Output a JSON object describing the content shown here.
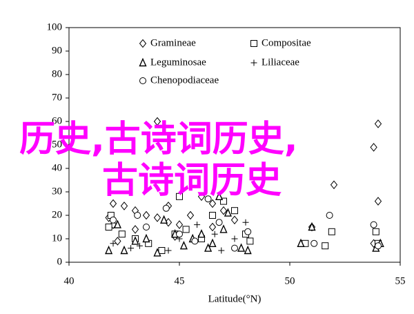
{
  "chart_data": {
    "type": "scatter",
    "xlabel": "Latitude(°N)",
    "xlim": [
      40,
      55
    ],
    "xticks": [
      40,
      45,
      50,
      55
    ],
    "ylim": [
      0,
      100
    ],
    "yticks": [
      0,
      10,
      20,
      30,
      40,
      50,
      60,
      70,
      80,
      90,
      100
    ],
    "overlay_text": [
      "历史,古诗词历史,",
      "古诗词历史"
    ],
    "series": [
      {
        "name": "Gramineae",
        "marker": "diamond",
        "color": "#000000",
        "x": [
          41.8,
          42,
          42.5,
          43,
          43.5,
          44,
          44.5,
          45,
          46,
          46.5,
          47,
          47.5,
          42,
          43,
          44.5,
          45.5,
          46.5,
          44,
          54,
          53.8,
          54,
          52,
          53.8,
          51,
          42.2,
          44.8
        ],
        "values": [
          19,
          25,
          24,
          22,
          20,
          19,
          17,
          16,
          28,
          25,
          22,
          18,
          16,
          14,
          24,
          20,
          15,
          60,
          59,
          49,
          26,
          33,
          8,
          15,
          9,
          11
        ]
      },
      {
        "name": "Compositae",
        "marker": "square",
        "color": "#000000",
        "x": [
          41.8,
          42.4,
          43,
          43.6,
          44.2,
          44.8,
          45.3,
          46,
          46.5,
          47,
          47.5,
          48,
          48.2,
          50.7,
          51.6,
          51.9,
          53.9,
          54,
          41.9,
          45
        ],
        "values": [
          15,
          12,
          10,
          8,
          5,
          12,
          14,
          10,
          20,
          26,
          22,
          12,
          9,
          8,
          7,
          13,
          13,
          8,
          20,
          28
        ]
      },
      {
        "name": "Leguminosae",
        "marker": "triangle",
        "color": "#000000",
        "x": [
          41.8,
          42.2,
          42.5,
          43,
          43.5,
          44,
          44.3,
          44.8,
          45.2,
          45.6,
          46,
          46.3,
          46.5,
          47,
          47.2,
          47.8,
          48.1,
          50.5,
          51,
          53.9,
          54.1,
          46.8
        ],
        "values": [
          5,
          16,
          5,
          9,
          10,
          4,
          18,
          12,
          7,
          10,
          12,
          6,
          8,
          14,
          21,
          6,
          5,
          8,
          15,
          6,
          8,
          28
        ]
      },
      {
        "name": "Liliaceae",
        "marker": "plus",
        "color": "#000000",
        "x": [
          42,
          42.8,
          43.2,
          44.5,
          45,
          45.8,
          46.6,
          46.9,
          47.5,
          48
        ],
        "values": [
          8,
          6,
          7,
          5,
          10,
          16,
          12,
          5,
          10,
          17
        ]
      },
      {
        "name": "Chenopodiaceae",
        "marker": "circle",
        "color": "#000000",
        "x": [
          42,
          43.1,
          43.5,
          44.4,
          45,
          45.7,
          46.3,
          46.8,
          47.5,
          48.1,
          51.1,
          51.8,
          53.8,
          54
        ],
        "values": [
          18,
          20,
          15,
          23,
          12,
          9,
          27,
          17,
          6,
          13,
          8,
          20,
          16,
          7
        ]
      }
    ]
  }
}
